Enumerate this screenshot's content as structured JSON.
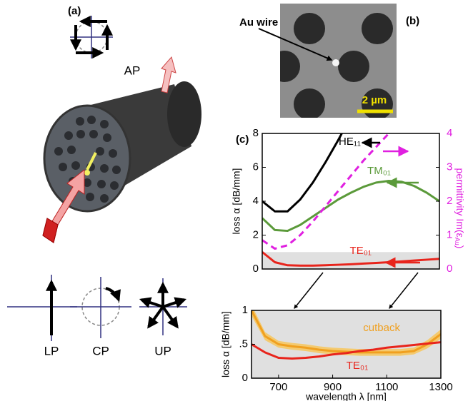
{
  "panel_labels": [
    "(a)",
    "(b)",
    "(c)"
  ],
  "polarization": {
    "ap": "AP",
    "lp": "LP",
    "cp": "CP",
    "up": "UP"
  },
  "sem": {
    "label": "Au wire",
    "scale": "2 µm"
  },
  "chart_data": [
    {
      "type": "line",
      "ylabel": "loss α [dB/mm]",
      "y2label": {
        "text": "permittivity Im(ε",
        "sub": "Au",
        "end": ")"
      },
      "x": [
        600,
        650,
        700,
        750,
        800,
        850,
        900,
        950,
        1000,
        1050,
        1100,
        1150,
        1200,
        1250,
        1300
      ],
      "xlim": [
        600,
        1300
      ],
      "ylim": [
        0,
        8
      ],
      "yticks": [
        0,
        2,
        4,
        6,
        8
      ],
      "y2lim": [
        0,
        4
      ],
      "y2ticks": [
        0,
        1,
        2,
        3,
        4
      ],
      "shade": [
        0,
        1
      ],
      "series": [
        {
          "name": "HE₁₁",
          "color": "#000000",
          "values": [
            4.0,
            3.4,
            3.4,
            4.1,
            5.1,
            6.3,
            7.6,
            9.0,
            null,
            null,
            null,
            null,
            null,
            null,
            null
          ]
        },
        {
          "name": "TM₀₁",
          "color": "#5b9a3a",
          "values": [
            3.0,
            2.3,
            2.25,
            2.6,
            3.1,
            3.6,
            4.1,
            4.5,
            4.85,
            5.1,
            5.2,
            5.15,
            4.9,
            4.5,
            4.0
          ]
        },
        {
          "name": "TE₀₁",
          "color": "#e8241c",
          "values": [
            1.0,
            0.4,
            0.22,
            0.2,
            0.2,
            0.22,
            0.25,
            0.28,
            0.32,
            0.36,
            0.4,
            0.45,
            0.5,
            0.55,
            0.6
          ]
        },
        {
          "axis": "y2",
          "color": "#e020e0",
          "dashed": true,
          "values": [
            0.85,
            0.6,
            0.7,
            1.0,
            1.4,
            1.85,
            2.3,
            2.75,
            3.2,
            3.6,
            4.0,
            null,
            null,
            null,
            null
          ]
        }
      ]
    },
    {
      "type": "line",
      "ylabel": "loss α [dB/mm]",
      "xlabel": "wavelength λ [nm]",
      "x": [
        600,
        650,
        700,
        750,
        800,
        850,
        900,
        950,
        1000,
        1050,
        1100,
        1150,
        1200,
        1250,
        1300
      ],
      "xlim": [
        600,
        1300
      ],
      "xticks": [
        700,
        900,
        1100,
        1300
      ],
      "ylim": [
        0,
        1
      ],
      "yticks": [
        0,
        {
          "value": 0.5,
          "label": ".5"
        },
        1
      ],
      "shade": [
        0,
        1
      ],
      "series": [
        {
          "name": "cutback",
          "color": "#f0a020",
          "band_color": "#f7c65a",
          "values": [
            1.0,
            0.62,
            0.5,
            0.47,
            0.45,
            0.42,
            0.4,
            0.39,
            0.38,
            0.38,
            0.38,
            0.38,
            0.4,
            0.5,
            0.65
          ],
          "error": [
            0.08,
            0.06,
            0.05,
            0.05,
            0.05,
            0.05,
            0.05,
            0.05,
            0.05,
            0.05,
            0.05,
            0.05,
            0.05,
            0.06,
            0.07
          ]
        },
        {
          "name": "TE₀₁",
          "color": "#e8241c",
          "values": [
            0.5,
            0.38,
            0.3,
            0.29,
            0.3,
            0.32,
            0.35,
            0.37,
            0.4,
            0.42,
            0.45,
            0.47,
            0.49,
            0.51,
            0.53
          ]
        }
      ]
    }
  ]
}
